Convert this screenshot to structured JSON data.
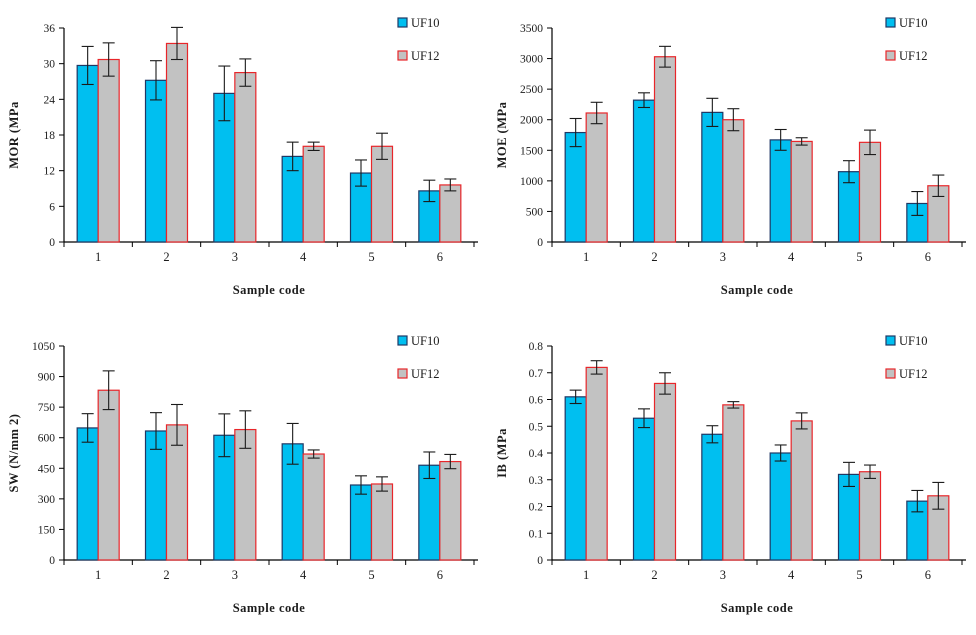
{
  "page": {
    "background": "#ffffff",
    "description": "Four grouped bar charts comparing UF10 and UF12 particleboard properties by sample code"
  },
  "style": {
    "axis_color": "#000000",
    "error_bar_color": "#1a1a1a",
    "text_color": "#1c1c1c",
    "uf10_fill": "#00BFF0",
    "uf10_stroke": "#1F3864",
    "uf12_fill": "#C2C2C2",
    "uf12_stroke": "#E8262A"
  },
  "chart_data": [
    {
      "type": "bar",
      "title": "",
      "ylabel": "MOR (MPa",
      "xlabel": "Sample code",
      "categories": [
        "1",
        "2",
        "3",
        "4",
        "5",
        "6"
      ],
      "ylim": [
        0,
        36
      ],
      "ytick_labels": [
        "0",
        "6",
        "12",
        "18",
        "24",
        "30",
        "36"
      ],
      "grid": false,
      "legend_position": "top-right",
      "series": [
        {
          "name": "UF10",
          "fill": "#00BFF0",
          "stroke": "#1F3864",
          "values": [
            29.7,
            27.2,
            25.0,
            14.4,
            11.6,
            8.6
          ],
          "errors": [
            3.2,
            3.3,
            4.6,
            2.4,
            2.2,
            1.8
          ]
        },
        {
          "name": "UF12",
          "fill": "#C2C2C2",
          "stroke": "#E8262A",
          "values": [
            30.7,
            33.4,
            28.5,
            16.1,
            16.1,
            9.6
          ],
          "errors": [
            2.8,
            2.7,
            2.3,
            0.7,
            2.2,
            1.0
          ]
        }
      ]
    },
    {
      "type": "bar",
      "title": "",
      "ylabel": "MOE (MPa",
      "xlabel": "Sample code",
      "categories": [
        "1",
        "2",
        "3",
        "4",
        "5",
        "6"
      ],
      "ylim": [
        0,
        3500
      ],
      "ytick_labels": [
        "0",
        "500",
        "1000",
        "1500",
        "2000",
        "2500",
        "3000",
        "3500"
      ],
      "grid": false,
      "legend_position": "top-right",
      "series": [
        {
          "name": "UF10",
          "fill": "#00BFF0",
          "stroke": "#1F3864",
          "values": [
            1790,
            2320,
            2120,
            1670,
            1150,
            630
          ],
          "errors": [
            230,
            120,
            230,
            170,
            180,
            195
          ]
        },
        {
          "name": "UF12",
          "fill": "#C2C2C2",
          "stroke": "#E8262A",
          "values": [
            2110,
            3030,
            2000,
            1645,
            1630,
            920
          ],
          "errors": [
            175,
            170,
            180,
            60,
            200,
            175
          ]
        }
      ]
    },
    {
      "type": "bar",
      "title": "",
      "ylabel": "SW (N/mm 2)",
      "xlabel": "Sample code",
      "categories": [
        "1",
        "2",
        "3",
        "4",
        "5",
        "6"
      ],
      "ylim": [
        0,
        1050
      ],
      "ytick_labels": [
        "0",
        "150",
        "300",
        "450",
        "600",
        "750",
        "900",
        "1050"
      ],
      "grid": false,
      "legend_position": "top-right",
      "series": [
        {
          "name": "UF10",
          "fill": "#00BFF0",
          "stroke": "#1F3864",
          "values": [
            648,
            633,
            612,
            570,
            368,
            465
          ],
          "errors": [
            70,
            90,
            105,
            100,
            45,
            65
          ]
        },
        {
          "name": "UF12",
          "fill": "#C2C2C2",
          "stroke": "#E8262A",
          "values": [
            833,
            663,
            640,
            520,
            373,
            483
          ],
          "errors": [
            95,
            100,
            92,
            20,
            35,
            35
          ]
        }
      ]
    },
    {
      "type": "bar",
      "title": "",
      "ylabel": "IB (MPa",
      "xlabel": "Sample code",
      "categories": [
        "1",
        "2",
        "3",
        "4",
        "5",
        "6"
      ],
      "ylim": [
        0,
        0.8
      ],
      "ytick_labels": [
        "0",
        "0.1",
        "0.2",
        "0.3",
        "0.4",
        "0.5",
        "0.6",
        "0.7",
        "0.8"
      ],
      "grid": false,
      "legend_position": "top-right",
      "series": [
        {
          "name": "UF10",
          "fill": "#00BFF0",
          "stroke": "#1F3864",
          "values": [
            0.61,
            0.53,
            0.47,
            0.4,
            0.32,
            0.22
          ],
          "errors": [
            0.025,
            0.035,
            0.032,
            0.03,
            0.045,
            0.04
          ]
        },
        {
          "name": "UF12",
          "fill": "#C2C2C2",
          "stroke": "#E8262A",
          "values": [
            0.72,
            0.66,
            0.58,
            0.52,
            0.33,
            0.24
          ],
          "errors": [
            0.025,
            0.04,
            0.012,
            0.03,
            0.025,
            0.05
          ]
        }
      ]
    }
  ]
}
